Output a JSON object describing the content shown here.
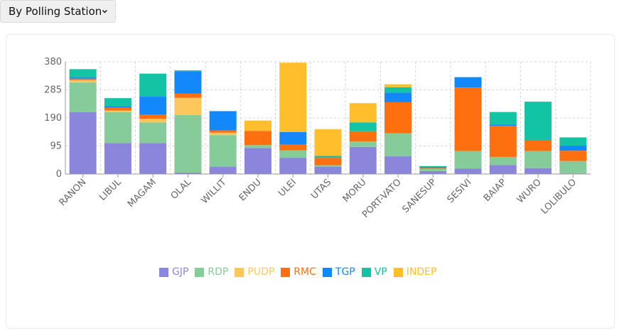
{
  "selector": {
    "value": "By Polling Station"
  },
  "chart_data": {
    "type": "bar",
    "stacked": true,
    "categories": [
      "RANON",
      "LIBUL",
      "MAGAM",
      "OLAL",
      "WILLIT",
      "ENDU",
      "ULEI",
      "UTAS",
      "MORU",
      "PORT-VATO",
      "SANESUP",
      "SESIVI",
      "BAIAP",
      "WURO",
      "LOLIBULO"
    ],
    "ylim": [
      0,
      380
    ],
    "yticks": [
      0,
      95,
      190,
      285,
      380
    ],
    "grid": true,
    "legend_position": "bottom",
    "series": [
      {
        "name": "GJP",
        "color": "#8b86dc",
        "values": [
          210,
          105,
          105,
          5,
          25,
          88,
          55,
          25,
          92,
          60,
          10,
          18,
          30,
          20,
          2
        ]
      },
      {
        "name": "RDP",
        "color": "#86cc9b",
        "values": [
          100,
          105,
          70,
          195,
          107,
          10,
          25,
          5,
          18,
          78,
          8,
          60,
          28,
          58,
          42
        ]
      },
      {
        "name": "PUDP",
        "color": "#fdc75e",
        "values": [
          8,
          5,
          12,
          58,
          8,
          0,
          0,
          0,
          0,
          0,
          0,
          0,
          0,
          0,
          0
        ]
      },
      {
        "name": "RMC",
        "color": "#fd6f0f",
        "values": [
          5,
          10,
          15,
          15,
          8,
          48,
          20,
          25,
          35,
          105,
          3,
          215,
          105,
          35,
          35
        ]
      },
      {
        "name": "TGP",
        "color": "#1288fb",
        "values": [
          5,
          5,
          60,
          75,
          65,
          0,
          42,
          0,
          0,
          33,
          3,
          35,
          5,
          0,
          17
        ]
      },
      {
        "name": "VP",
        "color": "#12c4a3",
        "values": [
          27,
          27,
          78,
          3,
          0,
          0,
          0,
          7,
          30,
          18,
          3,
          0,
          42,
          132,
          28
        ]
      },
      {
        "name": "INDEP",
        "color": "#ffbe2c",
        "values": [
          0,
          0,
          0,
          0,
          0,
          35,
          235,
          90,
          65,
          10,
          0,
          0,
          0,
          0,
          0
        ]
      }
    ]
  }
}
